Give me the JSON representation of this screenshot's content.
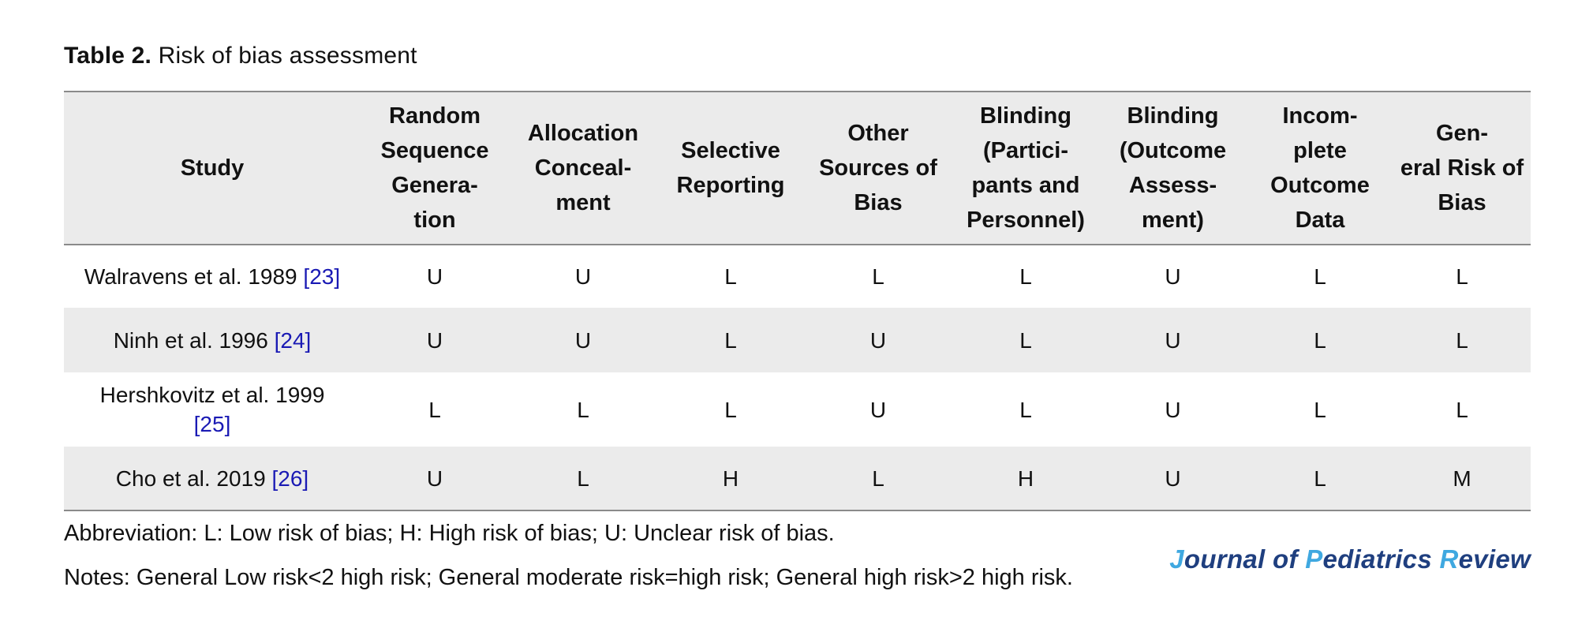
{
  "caption": {
    "label": "Table 2.",
    "text": "Risk of bias assessment"
  },
  "columns": [
    "Study",
    "Random Sequence Genera-tion",
    "Allocation Conceal-ment",
    "Selective Reporting",
    "Other Sources of Bias",
    "Blinding (Partici-pants and Personnel)",
    "Blinding (Outcome Assess-ment)",
    "Incom-plete Outcome Data",
    "Gen-eral Risk of Bias"
  ],
  "header_lines": [
    [
      "Study"
    ],
    [
      "Random",
      "Sequence",
      "Genera-",
      "tion"
    ],
    [
      "Allocation",
      "Conceal-",
      "ment"
    ],
    [
      "Selective",
      "Reporting"
    ],
    [
      "Other",
      "Sources of",
      "Bias"
    ],
    [
      "Blinding",
      "(Partici-",
      "pants and",
      "Personnel)"
    ],
    [
      "Blinding",
      "(Outcome",
      "Assess-",
      "ment)"
    ],
    [
      "Incom-",
      "plete",
      "Outcome",
      "Data"
    ],
    [
      "Gen-",
      "eral Risk of",
      "Bias"
    ]
  ],
  "rows": [
    {
      "study": "Walravens et al. 1989",
      "ref": "[23]",
      "ratings": [
        "U",
        "U",
        "L",
        "L",
        "L",
        "U",
        "L",
        "L"
      ]
    },
    {
      "study": "Ninh et al. 1996",
      "ref": "[24]",
      "ratings": [
        "U",
        "U",
        "L",
        "U",
        "L",
        "U",
        "L",
        "L"
      ]
    },
    {
      "study": "Hershkovitz et al. 1999",
      "ref": "[25]",
      "ratings": [
        "L",
        "L",
        "L",
        "U",
        "L",
        "U",
        "L",
        "L"
      ]
    },
    {
      "study": "Cho et al. 2019",
      "ref": "[26]",
      "ratings": [
        "U",
        "L",
        "H",
        "L",
        "H",
        "U",
        "L",
        "M"
      ]
    }
  ],
  "abbreviation": "Abbreviation: L: Low risk of bias; H: High risk of bias; U: Unclear risk of bias.",
  "notes": "Notes: General Low risk<2 high risk; General moderate risk=high risk; General high risk>2 high risk.",
  "journal": {
    "parts": [
      "J",
      "ournal of ",
      "P",
      "ediatrics ",
      "R",
      "eview"
    ]
  },
  "colors": {
    "header_bg": "#ebebeb",
    "ref_link": "#1a1ab4",
    "journal_main": "#1f3f7f",
    "journal_accent": "#3fa8e0"
  }
}
